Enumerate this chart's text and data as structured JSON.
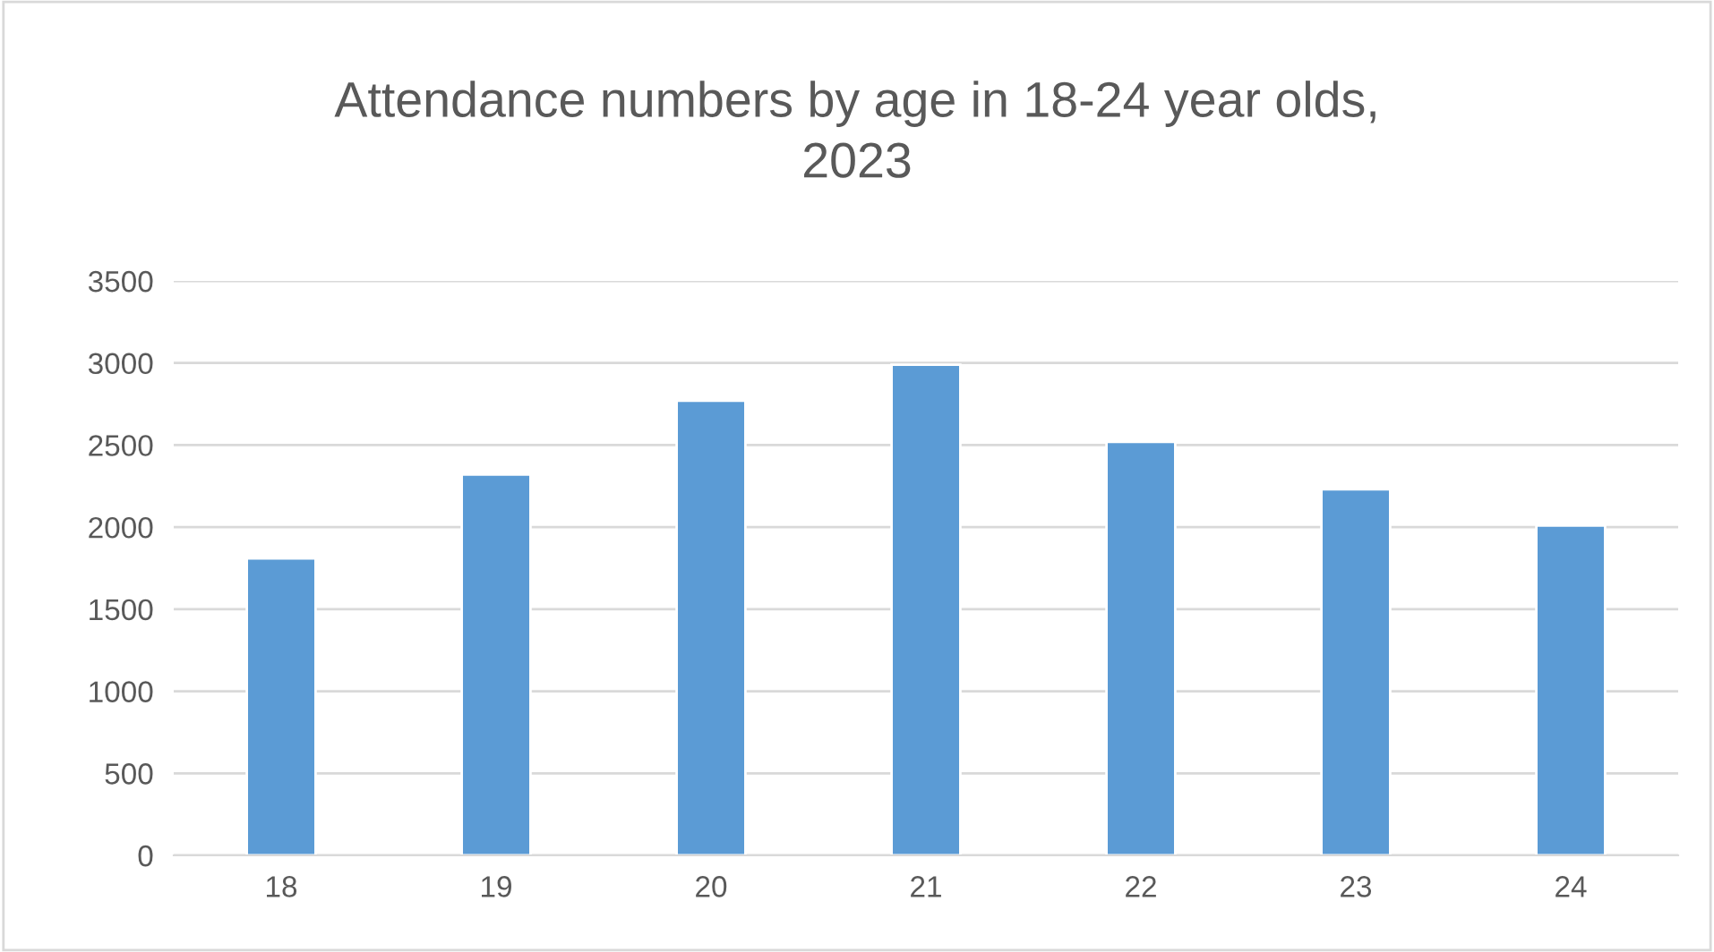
{
  "chart_data": {
    "type": "bar",
    "title": "Attendance numbers by age in 18-24 year olds,\n2023",
    "categories": [
      "18",
      "19",
      "20",
      "21",
      "22",
      "23",
      "24"
    ],
    "values": [
      1810,
      2320,
      2770,
      2990,
      2520,
      2230,
      2010
    ],
    "color": "#5b9bd5",
    "ylim": [
      0,
      3500
    ],
    "yticks": [
      0,
      500,
      1000,
      1500,
      2000,
      2500,
      3000,
      3500
    ],
    "grid": "y",
    "legend": false
  }
}
